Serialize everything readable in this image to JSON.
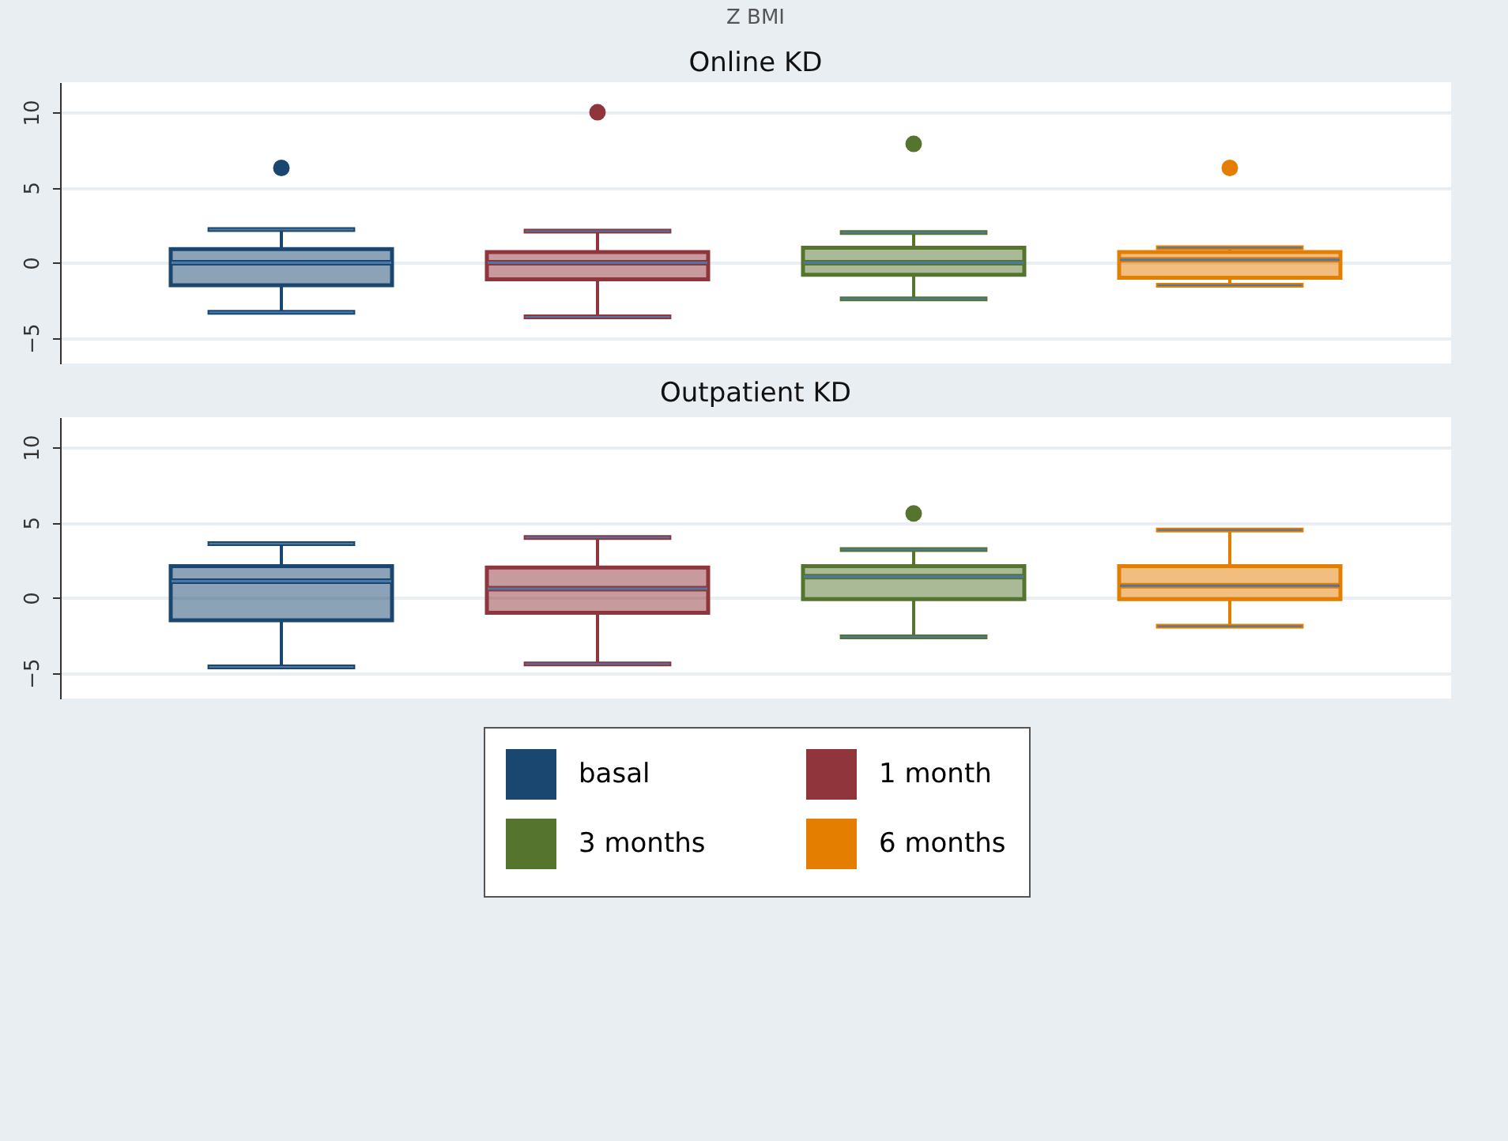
{
  "chart_data": [
    {
      "type": "box",
      "title": "Z BMI",
      "subtitle": "Online KD",
      "categories": [
        null
      ],
      "ylim": [
        -6.7,
        12
      ],
      "yticks": [
        -5,
        0,
        5,
        10
      ],
      "grid": "y",
      "series": [
        {
          "color": "#1a476f",
          "boxes": [
            {
              "low": -3.3,
              "q1": -1.5,
              "median": 0,
              "q3": 0.9,
              "high": 2.2,
              "outliers": [
                6.3
              ]
            }
          ]
        },
        {
          "color": "#90353b",
          "boxes": [
            {
              "low": -3.6,
              "q1": -1.1,
              "median": 0,
              "q3": 0.7,
              "high": 2.1,
              "outliers": [
                10
              ]
            }
          ]
        },
        {
          "color": "#55752f",
          "boxes": [
            {
              "low": -2.4,
              "q1": -0.8,
              "median": 0,
              "q3": 1,
              "high": 2,
              "outliers": [
                7.9
              ]
            }
          ]
        },
        {
          "color": "#e37e00",
          "boxes": [
            {
              "low": -1.5,
              "q1": -1,
              "median": 0.2,
              "q3": 0.7,
              "high": 1,
              "outliers": [
                6.3
              ]
            }
          ]
        }
      ]
    },
    {
      "type": "box",
      "subtitle": "Outpatient KD",
      "categories": [
        null
      ],
      "ylim": [
        -6.7,
        12
      ],
      "yticks": [
        -5,
        0,
        5,
        10
      ],
      "grid": "y",
      "legend": "bottom",
      "series": [
        {
          "name": "basal",
          "color": "#1a476f",
          "boxes": [
            {
              "low": -4.6,
              "q1": -1.5,
              "median": 1.1,
              "q3": 2.1,
              "high": 3.6
            }
          ]
        },
        {
          "name": "1 month",
          "color": "#90353b",
          "boxes": [
            {
              "low": -4.4,
              "q1": -1,
              "median": 0.6,
              "q3": 2,
              "high": 4
            }
          ]
        },
        {
          "name": "3 months",
          "color": "#55752f",
          "boxes": [
            {
              "low": -2.6,
              "q1": -0.1,
              "median": 1.4,
              "q3": 2.1,
              "high": 3.2,
              "outliers": [
                5.6
              ]
            }
          ]
        },
        {
          "name": "6 months",
          "color": "#e37e00",
          "boxes": [
            {
              "low": -1.9,
              "q1": -0.1,
              "median": 0.8,
              "q3": 2.1,
              "high": 4.5
            }
          ]
        }
      ]
    }
  ]
}
